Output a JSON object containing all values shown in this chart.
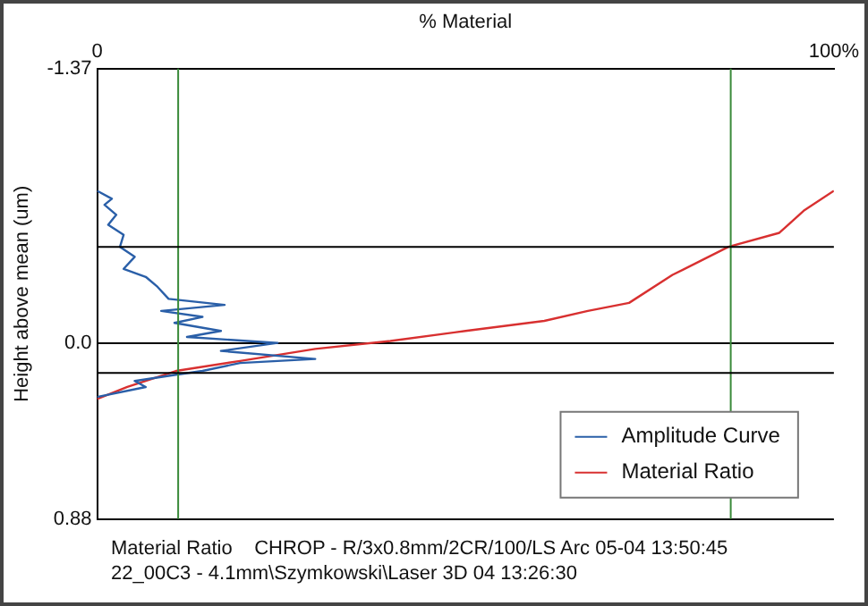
{
  "chart_data": {
    "type": "line",
    "xlabel": "% Material",
    "ylabel": "Height above mean (um)",
    "annotations": [
      "Material Ratio    CHROP - R/3x0.8mm/2CR/100/LS Arc 05-04 13:50:45",
      "22_00C3 - 4.1mm\\Szymkowski\\Laser 3D 04 13:26:30"
    ],
    "xlim": [
      0,
      100
    ],
    "xticks": [
      {
        "value": 0,
        "label": "0"
      },
      {
        "value": 100,
        "label": "100%"
      }
    ],
    "ylim": [
      0.88,
      -1.37
    ],
    "yticks": [
      -1.37,
      {
        "value": 0,
        "label": "0.0"
      },
      0.88
    ],
    "grid": "y",
    "legend": "bottom right",
    "marker": "none",
    "ref_lines": [
      {
        "axis": "x",
        "value": 11,
        "color": "#3a8a3a"
      },
      {
        "axis": "x",
        "value": 86,
        "color": "#3a8a3a"
      },
      {
        "axis": "y",
        "value": -0.48,
        "color": "#000000"
      },
      {
        "axis": "y",
        "value": 0.15,
        "color": "#000000"
      }
    ],
    "series": [
      {
        "name": "Amplitude Curve",
        "color": "#2a5fa8",
        "x": [
          0,
          2.0,
          1.0,
          2.6,
          1.5,
          3.6,
          3.1,
          5.1,
          3.6,
          6.6,
          8.2,
          9.7,
          17.3,
          8.7,
          14.3,
          10.5,
          16.8,
          12.2,
          24.5,
          16.8,
          29.6,
          19.4,
          14.3,
          10.5,
          5.1,
          6.6,
          0
        ],
        "values": [
          -0.76,
          -0.72,
          -0.69,
          -0.64,
          -0.59,
          -0.54,
          -0.48,
          -0.43,
          -0.37,
          -0.33,
          -0.28,
          -0.22,
          -0.19,
          -0.16,
          -0.13,
          -0.1,
          -0.06,
          -0.03,
          0.0,
          0.04,
          0.08,
          0.1,
          0.14,
          0.16,
          0.19,
          0.22,
          0.27
        ]
      },
      {
        "name": "Material Ratio",
        "color": "#d83030",
        "x": [
          0,
          4.1,
          10.7,
          19.4,
          29.6,
          39.8,
          50,
          60.7,
          66.6,
          72.2,
          78.1,
          81.9,
          85.7,
          92.6,
          95.9,
          100
        ],
        "values": [
          0.28,
          0.22,
          0.14,
          0.09,
          0.03,
          -0.01,
          -0.06,
          -0.11,
          -0.16,
          -0.2,
          -0.34,
          -0.41,
          -0.48,
          -0.55,
          -0.66,
          -0.76
        ]
      }
    ]
  }
}
